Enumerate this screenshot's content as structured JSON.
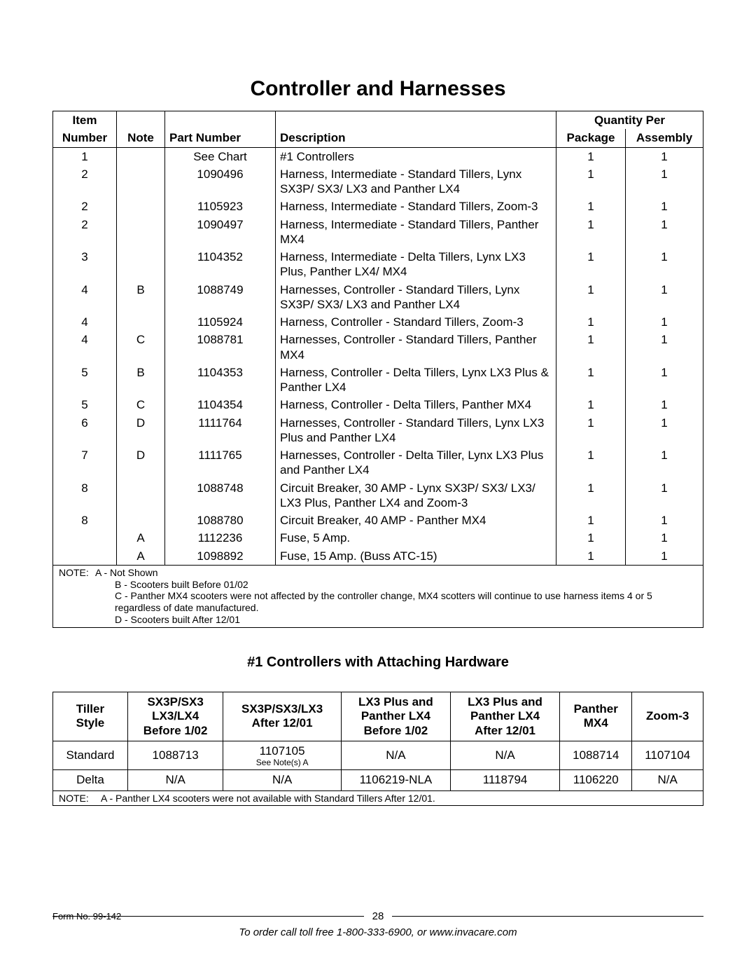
{
  "title": "Controller and Harnesses",
  "parts_table": {
    "header_top": {
      "item": "Item",
      "qty": "Quantity Per"
    },
    "header": {
      "number": "Number",
      "note": "Note",
      "part": "Part Number",
      "desc": "Description",
      "pkg": "Package",
      "asm": "Assembly"
    },
    "rows": [
      {
        "item": "1",
        "note": "",
        "part": "See Chart",
        "desc": "#1 Controllers",
        "pkg": "1",
        "asm": "1"
      },
      {
        "item": "2",
        "note": "",
        "part": "1090496",
        "desc": "Harness, Intermediate - Standard Tillers, Lynx SX3P/ SX3/ LX3 and Panther LX4",
        "pkg": "1",
        "asm": "1"
      },
      {
        "item": "2",
        "note": "",
        "part": "1105923",
        "desc": "Harness, Intermediate - Standard Tillers, Zoom-3",
        "pkg": "1",
        "asm": "1"
      },
      {
        "item": "2",
        "note": "",
        "part": "1090497",
        "desc": "Harness, Intermediate - Standard Tillers, Panther MX4",
        "pkg": "1",
        "asm": "1"
      },
      {
        "item": "3",
        "note": "",
        "part": "1104352",
        "desc": "Harness, Intermediate - Delta Tillers, Lynx LX3 Plus, Panther LX4/ MX4",
        "pkg": "1",
        "asm": "1"
      },
      {
        "item": "4",
        "note": "B",
        "part": "1088749",
        "desc": "Harnesses, Controller - Standard Tillers, Lynx SX3P/ SX3/ LX3 and Panther LX4",
        "pkg": "1",
        "asm": "1"
      },
      {
        "item": "4",
        "note": "",
        "part": "1105924",
        "desc": "Harness, Controller - Standard Tillers, Zoom-3",
        "pkg": "1",
        "asm": "1"
      },
      {
        "item": "4",
        "note": "C",
        "part": "1088781",
        "desc": "Harnesses, Controller - Standard Tillers, Panther MX4",
        "pkg": "1",
        "asm": "1"
      },
      {
        "item": "5",
        "note": "B",
        "part": "1104353",
        "desc": "Harness, Controller - Delta Tillers, Lynx LX3 Plus & Panther LX4",
        "pkg": "1",
        "asm": "1"
      },
      {
        "item": "5",
        "note": "C",
        "part": "1104354",
        "desc": "Harness, Controller - Delta Tillers, Panther MX4",
        "pkg": "1",
        "asm": "1"
      },
      {
        "item": "6",
        "note": "D",
        "part": "1111764",
        "desc": "Harnesses, Controller - Standard Tillers, Lynx LX3 Plus and Panther LX4",
        "pkg": "1",
        "asm": "1"
      },
      {
        "item": "7",
        "note": "D",
        "part": "1111765",
        "desc": "Harnesses, Controller - Delta Tiller, Lynx LX3 Plus and Panther LX4",
        "pkg": "1",
        "asm": "1"
      },
      {
        "item": "8",
        "note": "",
        "part": "1088748",
        "desc": "Circuit Breaker, 30 AMP - Lynx SX3P/ SX3/ LX3/ LX3 Plus, Panther LX4 and Zoom-3",
        "pkg": "1",
        "asm": "1"
      },
      {
        "item": "8",
        "note": "",
        "part": "1088780",
        "desc": "Circuit Breaker, 40 AMP - Panther MX4",
        "pkg": "1",
        "asm": "1"
      },
      {
        "item": "",
        "note": "A",
        "part": "1112236",
        "desc": "Fuse, 5 Amp.",
        "pkg": "1",
        "asm": "1"
      },
      {
        "item": "",
        "note": "A",
        "part": "1098892",
        "desc": "Fuse, 15 Amp. (Buss ATC-15)",
        "pkg": "1",
        "asm": "1"
      }
    ],
    "notes_label": "NOTE:",
    "notes": [
      "A - Not Shown",
      "B - Scooters built Before 01/02",
      "C - Panther MX4 scooters were not affected by the controller change,  MX4 scotters will continue to use harness items 4 or 5 regardless of date manufactured.",
      "D - Scooters built After 12/01"
    ]
  },
  "subheading": "#1  Controllers with Attaching Hardware",
  "ctrl_table": {
    "headers": [
      "Tiller\nStyle",
      "SX3P/SX3\nLX3/LX4\nBefore 1/02",
      "SX3P/SX3/LX3\nAfter 12/01",
      "LX3 Plus and\nPanther LX4\nBefore 1/02",
      "LX3 Plus and\nPanther LX4\nAfter 12/01",
      "Panther\nMX4",
      "Zoom-3"
    ],
    "rows": [
      {
        "cells": [
          "Standard",
          "1088713",
          "1107105",
          "N/A",
          "N/A",
          "1088714",
          "1107104"
        ],
        "sub": {
          "col": 2,
          "text": "See Note(s) A"
        }
      },
      {
        "cells": [
          "Delta",
          "N/A",
          "N/A",
          "1106219-NLA",
          "1118794",
          "1106220",
          "N/A"
        ]
      }
    ],
    "note_label": "NOTE:",
    "note": "A - Panther LX4 scooters were not available with Standard Tillers After 12/01."
  },
  "page_number": "28",
  "form_no": "Form No.  99-142",
  "order_line": "To order call toll free 1-800-333-6900, or www.invacare.com"
}
